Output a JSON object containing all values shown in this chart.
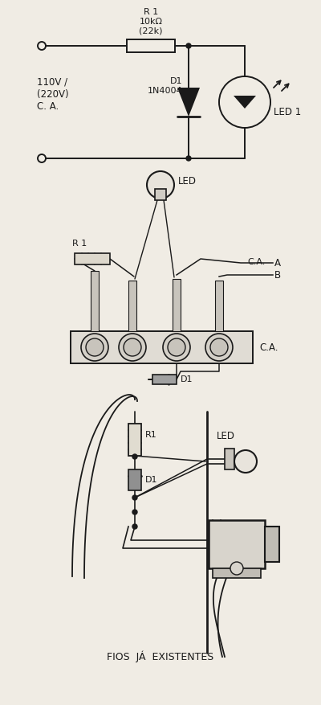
{
  "bg_color": "#f0ece4",
  "line_color": "#1a1a1a",
  "lw": 1.4,
  "section1": {
    "voltage_label": "110V /\n(220V)\nC. A.",
    "r1_label": "R 1\n10kΩ\n(22k)",
    "d1_label": "D1\n1N4004",
    "led_label": "LED 1"
  },
  "section2": {
    "led_label": "LED",
    "r1_label": "R 1",
    "ca_label": "C.A.",
    "d1_label": "D1",
    "a_label": "A",
    "b_label": "B",
    "ca2_label": "C.A."
  },
  "section3": {
    "r1_label": "R1",
    "d1_label": "D1",
    "led_label": "LED",
    "bottom_label": "FIOS  JÁ  EXISTENTES"
  }
}
